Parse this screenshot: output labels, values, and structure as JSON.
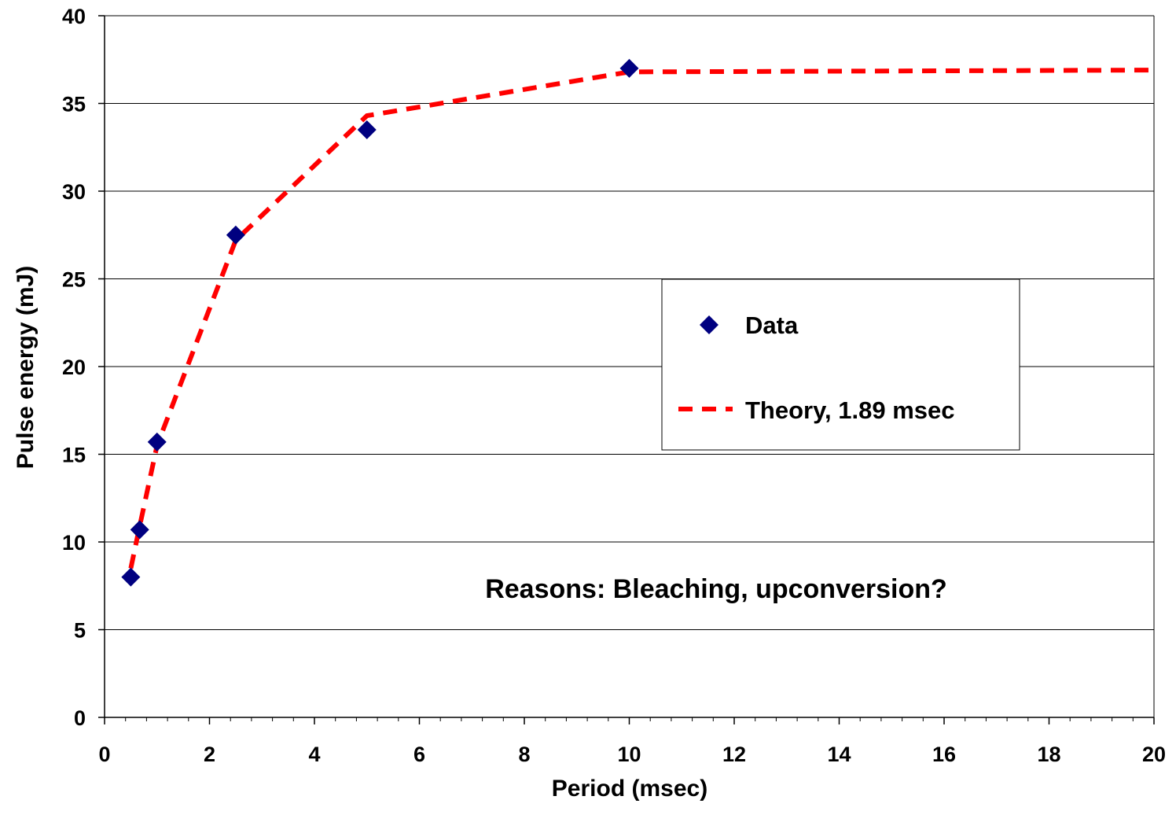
{
  "chart_data": {
    "type": "scatter",
    "xlabel": "Period (msec)",
    "ylabel": "Pulse energy (mJ)",
    "xlim": [
      0,
      20
    ],
    "ylim": [
      0,
      40
    ],
    "x_ticks": [
      "0",
      "2",
      "4",
      "6",
      "8",
      "10",
      "12",
      "14",
      "16",
      "18",
      "20"
    ],
    "y_ticks": [
      "0",
      "5",
      "10",
      "15",
      "20",
      "25",
      "30",
      "35",
      "40"
    ],
    "x_minor_step": 0.4,
    "grid": "horizontal major gridlines",
    "legend_position": "center-right",
    "series": [
      {
        "name": "Data",
        "style": "markers",
        "marker": "diamond",
        "color": "#000080",
        "x": [
          0.5,
          0.67,
          1.0,
          2.5,
          5.0,
          10.0
        ],
        "y": [
          8.0,
          10.7,
          15.7,
          27.5,
          33.5,
          37.0
        ]
      },
      {
        "name": "Theory, 1.89 msec",
        "style": "dashed-line",
        "color": "#ff0000",
        "x": [
          0.5,
          0.67,
          1.0,
          2.5,
          5.0,
          10.0,
          20.0
        ],
        "y": [
          8.5,
          10.9,
          15.5,
          27.2,
          34.3,
          36.8,
          36.9
        ]
      }
    ],
    "annotations": [
      "Reasons: Bleaching, upconversion?"
    ]
  }
}
